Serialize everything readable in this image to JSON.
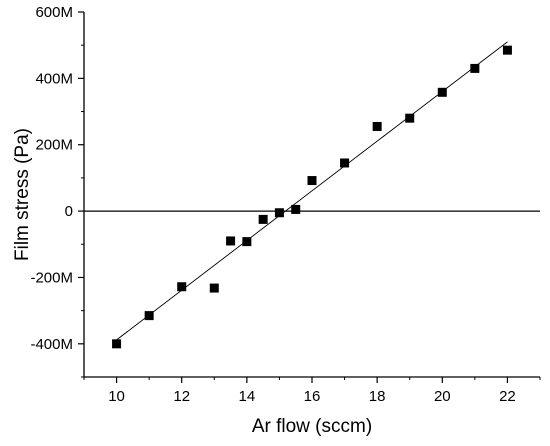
{
  "chart_data": {
    "type": "scatter",
    "title": "",
    "xlabel": "Ar flow (sccm)",
    "ylabel": "Film stress (Pa)",
    "xlim": [
      9,
      23
    ],
    "ylim": [
      -500,
      600
    ],
    "xticks": [
      10,
      12,
      14,
      16,
      18,
      20,
      22
    ],
    "xtick_labels": [
      "10",
      "12",
      "14",
      "16",
      "18",
      "20",
      "22"
    ],
    "yticks": [
      -400,
      -200,
      0,
      200,
      400,
      600
    ],
    "ytick_labels": [
      "-400M",
      "-200M",
      "0",
      "200M",
      "400M",
      "600M"
    ],
    "y_unit_scale": "M",
    "grid": false,
    "legend": "none",
    "series": [
      {
        "marker": "square",
        "color": "#000000",
        "x": [
          10,
          11,
          12,
          13,
          13.5,
          14,
          14.5,
          15,
          15.5,
          16,
          17,
          18,
          19,
          20,
          21,
          22
        ],
        "y": [
          -400,
          -315,
          -228,
          -232,
          -90,
          -92,
          -25,
          -5,
          5,
          92,
          145,
          255,
          280,
          358,
          430,
          485
        ]
      }
    ],
    "fit_line": {
      "color": "#000000",
      "x": [
        10,
        22
      ],
      "y": [
        -388,
        510
      ]
    },
    "zero_line": {
      "y": 0,
      "color": "#000000"
    }
  }
}
